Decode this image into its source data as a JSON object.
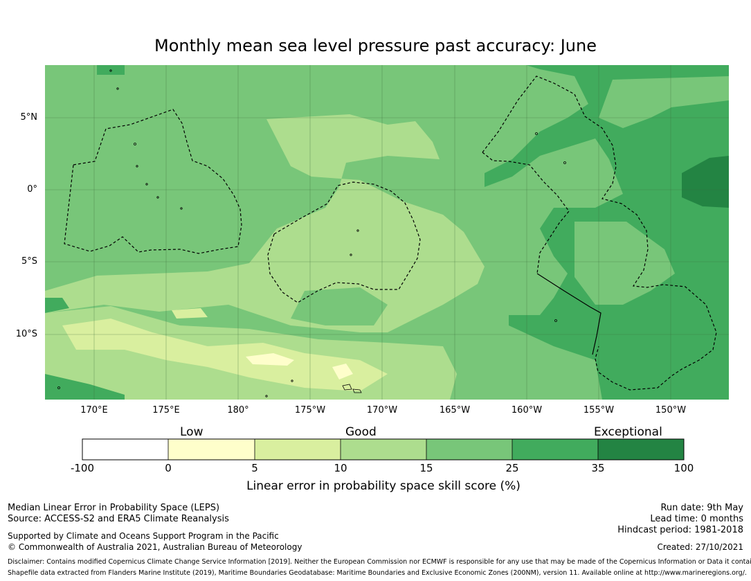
{
  "title": "Monthly mean sea level pressure past accuracy: June",
  "map": {
    "latitude_labels": [
      "5°N",
      "0°",
      "5°S",
      "10°S"
    ],
    "longitude_labels": [
      "170°E",
      "175°E",
      "180°",
      "175°W",
      "170°W",
      "165°W",
      "160°W",
      "155°W",
      "150°W"
    ],
    "colors": {
      "lvl0": "#ffffff",
      "lvl1": "#fefecb",
      "lvl2": "#d9ef9f",
      "lvl3": "#addd8e",
      "lvl4": "#78c679",
      "lvl5": "#41ab5d",
      "lvl6": "#238443",
      "gridline": "#3a6b3a",
      "boundary": "#000000"
    }
  },
  "colorbar": {
    "categories": [
      "Low",
      "Good",
      "Exceptional"
    ],
    "ticks": [
      "-100",
      "0",
      "5",
      "10",
      "15",
      "25",
      "35",
      "100"
    ],
    "title": "Linear error in probability space skill score (%)"
  },
  "info": {
    "left_line1": "Median Linear Error in Probability Space (LEPS)",
    "left_line2": "Source: ACCESS-S2 and ERA5 Climate Reanalysis",
    "left_line3": "Supported by Climate and Oceans Support Program in the Pacific",
    "left_line4": "© Commonwealth of Australia 2021, Australian Bureau of Meteorology",
    "right_line1": "Run date: 9th May",
    "right_line2": "Lead time: 0 months",
    "right_line3": "Hindcast period: 1981-2018",
    "right_line4": "Created: 27/10/2021",
    "disclaimer1": "Disclaimer: Contains modified Copernicus Climate Change Service Information [2019]. Neither the European Commission nor ECMWF is responsible for any use that may be made of the Copernicus Information or Data it contains.",
    "disclaimer2": "Shapefile data extracted from Flanders Marine Institute (2019), Maritime Boundaries Geodatabase: Maritime Boundaries and Exclusive Economic Zones (200NM), version 11. Available online at http://www.marineregions.org/."
  }
}
